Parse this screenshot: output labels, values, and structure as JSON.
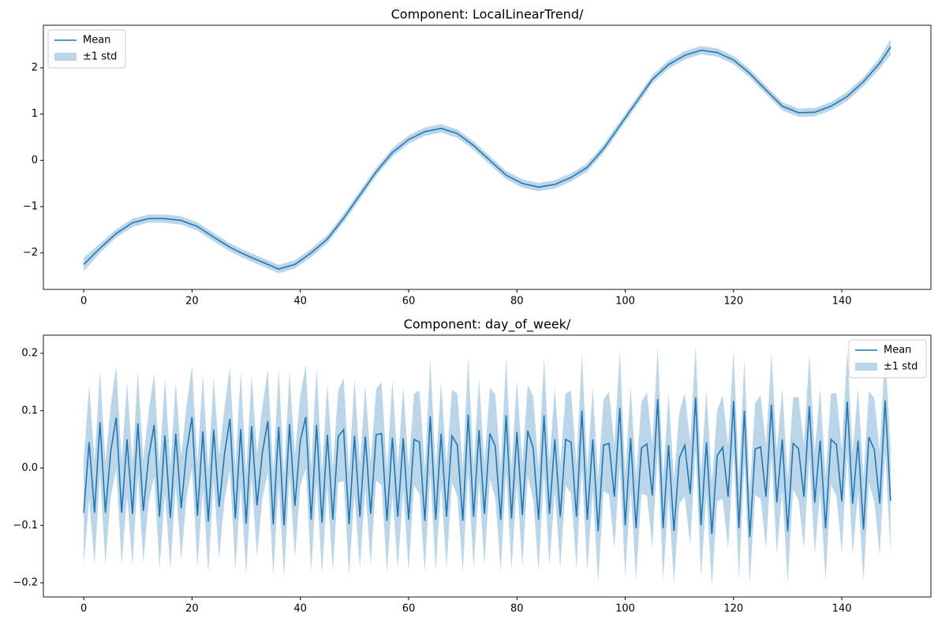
{
  "chart_data": [
    {
      "type": "line",
      "title": "Component: LocalLinearTrend/",
      "x": [
        0,
        3,
        6,
        9,
        12,
        15,
        18,
        21,
        24,
        27,
        30,
        33,
        36,
        39,
        42,
        45,
        48,
        51,
        54,
        57,
        60,
        63,
        66,
        69,
        72,
        75,
        78,
        81,
        84,
        87,
        90,
        93,
        96,
        99,
        102,
        105,
        108,
        111,
        114,
        117,
        120,
        123,
        126,
        129,
        132,
        135,
        138,
        141,
        144,
        147,
        149
      ],
      "series": [
        {
          "name": "Mean",
          "color": "#1f77b4",
          "values": [
            -2.25,
            -1.9,
            -1.58,
            -1.35,
            -1.26,
            -1.26,
            -1.3,
            -1.43,
            -1.66,
            -1.88,
            -2.05,
            -2.2,
            -2.35,
            -2.25,
            -2.0,
            -1.7,
            -1.25,
            -0.75,
            -0.25,
            0.17,
            0.45,
            0.62,
            0.69,
            0.58,
            0.32,
            0.0,
            -0.32,
            -0.5,
            -0.58,
            -0.52,
            -0.37,
            -0.15,
            0.25,
            0.75,
            1.25,
            1.75,
            2.07,
            2.27,
            2.38,
            2.33,
            2.17,
            1.88,
            1.52,
            1.17,
            1.03,
            1.04,
            1.17,
            1.38,
            1.7,
            2.1,
            2.45
          ]
        }
      ],
      "band": {
        "name": "±1 std",
        "color": "#bcd6e9",
        "values": [
          0.15,
          0.1,
          0.09,
          0.09,
          0.09,
          0.09,
          0.09,
          0.09,
          0.09,
          0.09,
          0.09,
          0.09,
          0.09,
          0.09,
          0.09,
          0.09,
          0.09,
          0.09,
          0.09,
          0.09,
          0.09,
          0.09,
          0.09,
          0.09,
          0.09,
          0.09,
          0.09,
          0.09,
          0.09,
          0.09,
          0.09,
          0.09,
          0.09,
          0.09,
          0.09,
          0.09,
          0.09,
          0.09,
          0.09,
          0.09,
          0.09,
          0.09,
          0.09,
          0.09,
          0.09,
          0.09,
          0.09,
          0.1,
          0.1,
          0.12,
          0.17
        ]
      },
      "xlim": [
        -7.45,
        156.45
      ],
      "xticks": [
        0,
        20,
        40,
        60,
        80,
        100,
        120,
        140
      ],
      "ylim": [
        -2.79,
        2.92
      ],
      "yticks": [
        {
          "value": -2,
          "label": "−2"
        },
        {
          "value": -1,
          "label": "−1"
        },
        0,
        1,
        2
      ],
      "legend": "upper left"
    },
    {
      "type": "line",
      "title": "Component: day_of_week/",
      "x": [
        0,
        1,
        2,
        3,
        4,
        5,
        6,
        7,
        8,
        9,
        10,
        11,
        12,
        13,
        14,
        15,
        16,
        17,
        18,
        19,
        20,
        21,
        22,
        23,
        24,
        25,
        26,
        27,
        28,
        29,
        30,
        31,
        32,
        33,
        34,
        35,
        36,
        37,
        38,
        39,
        40,
        41,
        42,
        43,
        44,
        45,
        46,
        47,
        48,
        49,
        50,
        51,
        52,
        53,
        54,
        55,
        56,
        57,
        58,
        59,
        60,
        61,
        62,
        63,
        64,
        65,
        66,
        67,
        68,
        69,
        70,
        71,
        72,
        73,
        74,
        75,
        76,
        77,
        78,
        79,
        80,
        81,
        82,
        83,
        84,
        85,
        86,
        87,
        88,
        89,
        90,
        91,
        92,
        93,
        94,
        95,
        96,
        97,
        98,
        99,
        100,
        101,
        102,
        103,
        104,
        105,
        106,
        107,
        108,
        109,
        110,
        111,
        112,
        113,
        114,
        115,
        116,
        117,
        118,
        119,
        120,
        121,
        122,
        123,
        124,
        125,
        126,
        127,
        128,
        129,
        130,
        131,
        132,
        133,
        134,
        135,
        136,
        137,
        138,
        139,
        140,
        141,
        142,
        143,
        144,
        145,
        146,
        147,
        148,
        149
      ],
      "series": [
        {
          "name": "Mean",
          "color": "#1f77b4",
          "values": [
            -0.078,
            0.045,
            -0.078,
            0.08,
            -0.078,
            0.03,
            0.088,
            -0.078,
            0.05,
            -0.08,
            0.078,
            -0.075,
            0.02,
            0.075,
            -0.085,
            0.057,
            -0.087,
            0.06,
            -0.07,
            0.03,
            0.089,
            -0.083,
            0.064,
            -0.093,
            0.067,
            -0.068,
            0.025,
            0.086,
            -0.088,
            0.068,
            -0.097,
            0.073,
            -0.065,
            0.028,
            0.082,
            -0.098,
            0.072,
            -0.1,
            0.077,
            -0.066,
            0.048,
            0.089,
            -0.09,
            0.075,
            -0.095,
            0.058,
            -0.09,
            0.055,
            0.067,
            -0.098,
            0.056,
            -0.085,
            0.055,
            -0.08,
            0.058,
            0.06,
            -0.092,
            0.053,
            -0.085,
            0.052,
            -0.09,
            0.05,
            0.045,
            -0.092,
            0.09,
            -0.09,
            0.06,
            -0.085,
            0.056,
            0.04,
            -0.092,
            0.093,
            -0.085,
            0.066,
            -0.08,
            0.06,
            0.038,
            -0.09,
            0.092,
            -0.088,
            0.063,
            -0.082,
            0.065,
            0.035,
            -0.09,
            0.092,
            -0.08,
            0.05,
            -0.085,
            0.05,
            0.045,
            -0.085,
            0.1,
            -0.09,
            0.05,
            -0.11,
            0.04,
            0.043,
            -0.05,
            0.105,
            -0.1,
            0.052,
            -0.105,
            0.035,
            0.042,
            -0.048,
            0.12,
            -0.105,
            0.04,
            -0.11,
            0.018,
            0.04,
            -0.045,
            0.123,
            -0.1,
            0.045,
            -0.115,
            0.022,
            0.036,
            -0.05,
            0.117,
            -0.105,
            0.1,
            -0.12,
            0.033,
            0.037,
            -0.05,
            0.11,
            -0.06,
            0.05,
            -0.11,
            0.043,
            0.034,
            -0.05,
            0.108,
            -0.06,
            0.048,
            -0.105,
            0.05,
            0.041,
            -0.058,
            0.116,
            -0.062,
            0.048,
            -0.107,
            0.054,
            0.032,
            -0.062,
            0.118,
            -0.057
          ]
        }
      ],
      "band": {
        "name": "±1 std",
        "color": "#bcd6e9",
        "values": [
          0.09,
          0.1,
          0.09,
          0.09,
          0.09,
          0.08,
          0.09,
          0.09,
          0.1,
          0.09,
          0.09,
          0.09,
          0.08,
          0.09,
          0.09,
          0.1,
          0.09,
          0.09,
          0.09,
          0.08,
          0.09,
          0.09,
          0.1,
          0.09,
          0.09,
          0.09,
          0.08,
          0.09,
          0.09,
          0.1,
          0.09,
          0.09,
          0.09,
          0.08,
          0.09,
          0.09,
          0.1,
          0.09,
          0.09,
          0.09,
          0.08,
          0.09,
          0.09,
          0.1,
          0.09,
          0.09,
          0.09,
          0.08,
          0.09,
          0.09,
          0.1,
          0.09,
          0.09,
          0.09,
          0.08,
          0.09,
          0.09,
          0.1,
          0.09,
          0.09,
          0.09,
          0.08,
          0.09,
          0.09,
          0.1,
          0.09,
          0.09,
          0.09,
          0.08,
          0.09,
          0.09,
          0.1,
          0.09,
          0.09,
          0.09,
          0.08,
          0.09,
          0.09,
          0.1,
          0.09,
          0.09,
          0.09,
          0.08,
          0.09,
          0.09,
          0.1,
          0.09,
          0.09,
          0.09,
          0.08,
          0.09,
          0.09,
          0.1,
          0.09,
          0.09,
          0.09,
          0.08,
          0.09,
          0.09,
          0.1,
          0.09,
          0.09,
          0.09,
          0.08,
          0.09,
          0.09,
          0.09,
          0.09,
          0.09,
          0.09,
          0.08,
          0.09,
          0.09,
          0.09,
          0.09,
          0.09,
          0.09,
          0.08,
          0.09,
          0.09,
          0.09,
          0.09,
          0.09,
          0.08,
          0.08,
          0.09,
          0.09,
          0.09,
          0.09,
          0.09,
          0.09,
          0.08,
          0.09,
          0.09,
          0.09,
          0.09,
          0.09,
          0.09,
          0.08,
          0.09,
          0.09,
          0.09,
          0.09,
          0.09,
          0.09,
          0.08,
          0.09,
          0.09,
          0.09,
          0.09
        ]
      },
      "xlim": [
        -7.45,
        156.45
      ],
      "xticks": [
        0,
        20,
        40,
        60,
        80,
        100,
        120,
        140
      ],
      "ylim": [
        -0.2247,
        0.2316
      ],
      "yticks": [
        {
          "value": -0.2,
          "label": "−0.2"
        },
        {
          "value": -0.1,
          "label": "−0.1"
        },
        {
          "value": 0,
          "label": "0.0"
        },
        0.1,
        0.2
      ],
      "legend": "upper right"
    }
  ]
}
